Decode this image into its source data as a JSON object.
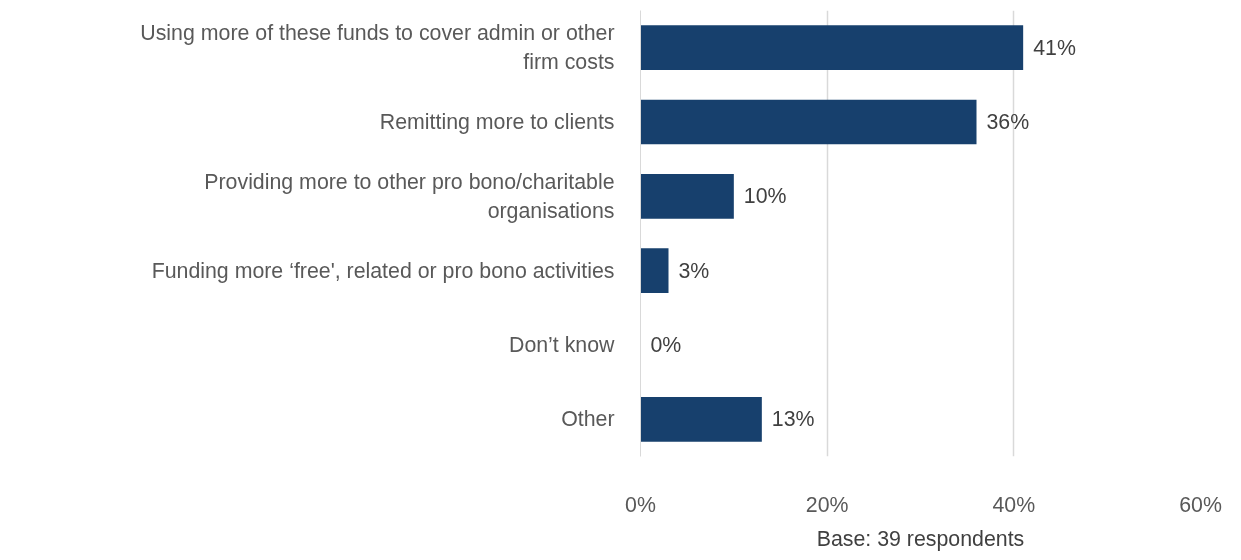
{
  "chart_data": {
    "type": "bar",
    "orientation": "horizontal",
    "categories": [
      "Using more of these funds to cover admin or other firm costs",
      "Remitting more to clients",
      "Providing more to other pro bono/charitable organisations",
      "Funding more ‘free', related or pro bono activities",
      "Don’t know",
      "Other"
    ],
    "values": [
      41,
      36,
      10,
      3,
      0,
      13
    ],
    "value_labels": [
      "41%",
      "36%",
      "10%",
      "3%",
      "0%",
      "13%"
    ],
    "color": "#17406d",
    "xlim": [
      0,
      60
    ],
    "xticks": [
      {
        "value": 0,
        "label": "0%"
      },
      {
        "value": 20,
        "label": "20%"
      },
      {
        "value": 40,
        "label": "40%"
      },
      {
        "value": 60,
        "label": "60%"
      }
    ],
    "grid": "x",
    "annotations": [
      "Base: 39 respondents"
    ]
  }
}
